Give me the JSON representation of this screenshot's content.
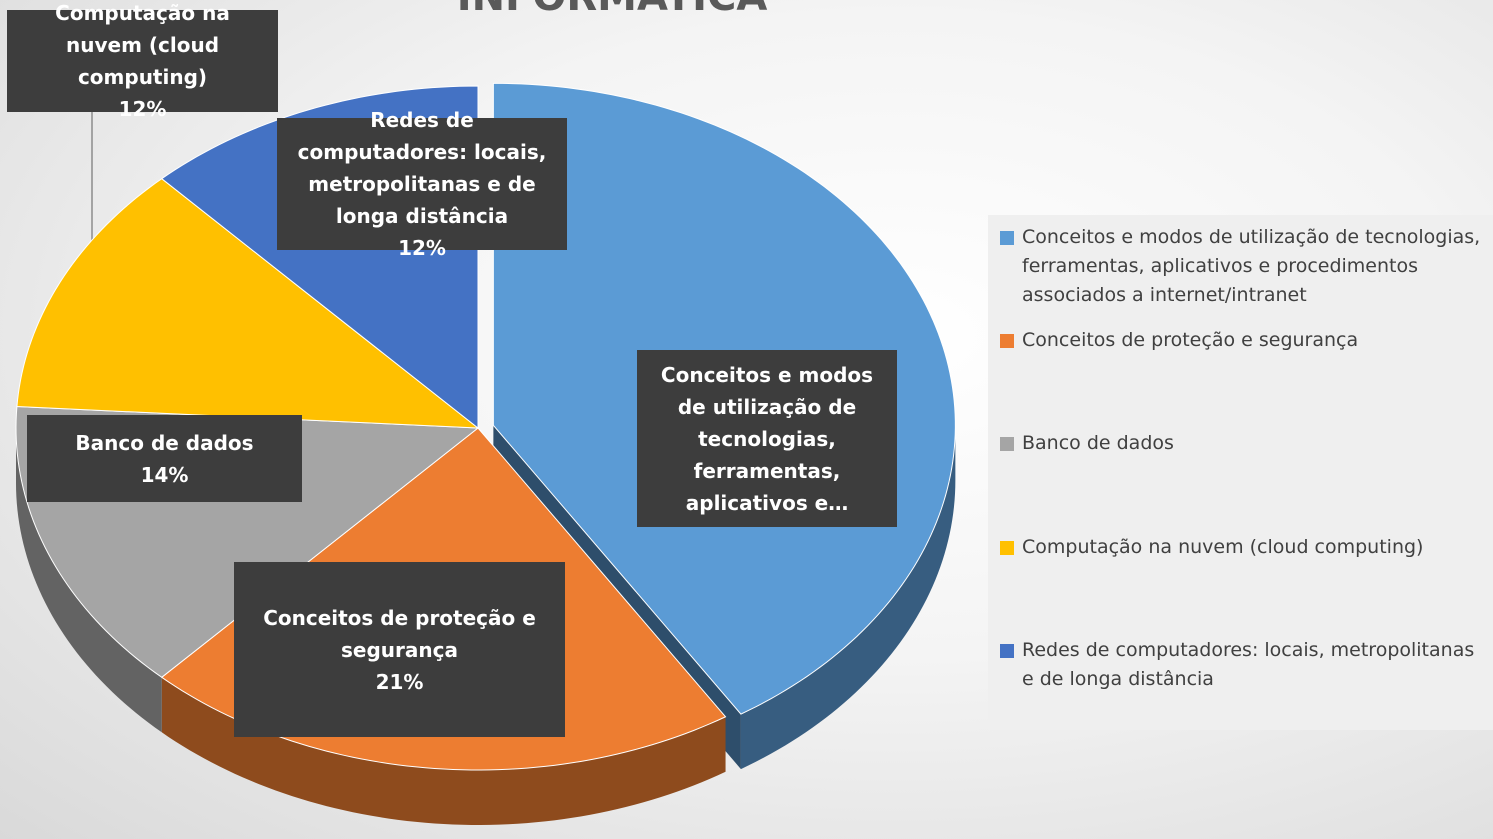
{
  "chart_data": {
    "type": "pie",
    "title": "INFORMÁTICA",
    "categories": [
      "Conceitos e modos de utilização de tecnologias, ferramentas, aplicativos e procedimentos associados a internet/intranet",
      "Conceitos de proteção e segurança",
      "Banco de dados",
      "Computação na nuvem (cloud computing)",
      "Redes de computadores: locais, metropolitanas e de longa distância"
    ],
    "values": [
      41,
      21,
      14,
      12,
      12
    ],
    "value_labels": [
      null,
      "21%",
      "14%",
      "12%",
      "12%"
    ],
    "data_labels": [
      "Conceitos e modos de utilização de tecnologias, ferramentas, aplicativos e…",
      "Conceitos de proteção e segurança",
      "Banco de dados",
      "Computação na nuvem (cloud computing)",
      "Redes de computadores: locais, metropolitanas e de longa distância"
    ],
    "colors": [
      "#5b9bd5",
      "#ed7d31",
      "#a5a5a5",
      "#ffc000",
      "#4472c4"
    ],
    "legend": "right"
  }
}
